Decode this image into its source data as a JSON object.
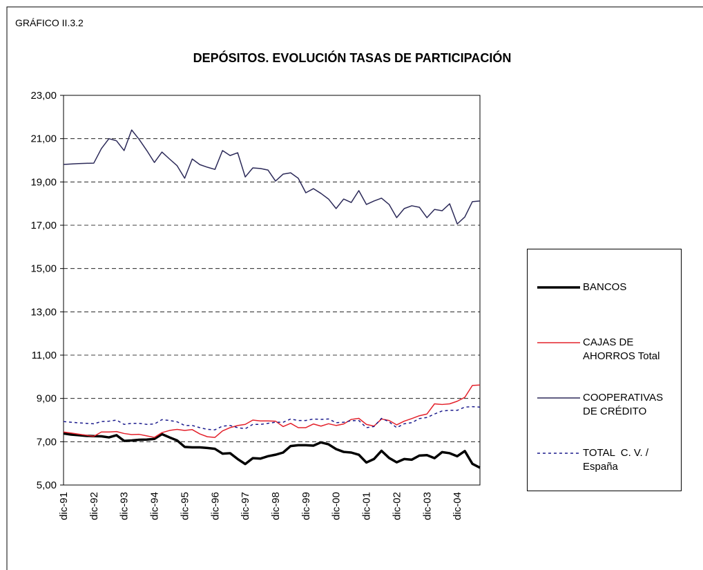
{
  "chart_data": {
    "type": "line",
    "header": "GRÁFICO II.3.2",
    "title": "DEPÓSITOS. EVOLUCIÓN TASAS DE PARTICIPACIÓN",
    "categories": [
      "dic-91",
      null,
      null,
      null,
      "dic-92",
      null,
      null,
      null,
      "dic-93",
      null,
      null,
      null,
      "dic-94",
      null,
      null,
      null,
      "dic-95",
      null,
      null,
      null,
      "dic-96",
      null,
      null,
      null,
      "dic-97",
      null,
      null,
      null,
      "dic-98",
      null,
      null,
      null,
      "dic-99",
      null,
      null,
      null,
      "dic-00",
      null,
      null,
      null,
      "dic-01",
      null,
      null,
      null,
      "dic-02",
      null,
      null,
      null,
      "dic-03",
      null,
      null,
      null,
      "dic-04",
      null,
      null,
      null
    ],
    "ylim": [
      5,
      23
    ],
    "yticks": [
      {
        "value": 5,
        "label": "5,00"
      },
      {
        "value": 7,
        "label": "7,00"
      },
      {
        "value": 9,
        "label": "9,00"
      },
      {
        "value": 11,
        "label": "11,00"
      },
      {
        "value": 13,
        "label": "13,00"
      },
      {
        "value": 15,
        "label": "15,00"
      },
      {
        "value": 17,
        "label": "17,00"
      },
      {
        "value": 19,
        "label": "19,00"
      },
      {
        "value": 21,
        "label": "21,00"
      },
      {
        "value": 23,
        "label": "23,00"
      }
    ],
    "grid": true,
    "legend": "right",
    "series": [
      {
        "name": "BANCOS",
        "color": "#000000",
        "width": 3.5,
        "style": "solid",
        "values": [
          7.38,
          7.33,
          7.3,
          7.27,
          7.26,
          7.25,
          7.2,
          7.3,
          7.04,
          7.06,
          7.09,
          7.1,
          7.13,
          7.35,
          7.2,
          7.06,
          6.76,
          6.74,
          6.74,
          6.71,
          6.67,
          6.45,
          6.47,
          6.2,
          5.97,
          6.24,
          6.22,
          6.33,
          6.4,
          6.5,
          6.8,
          6.84,
          6.84,
          6.82,
          6.97,
          6.88,
          6.66,
          6.53,
          6.5,
          6.4,
          6.04,
          6.2,
          6.58,
          6.25,
          6.05,
          6.2,
          6.17,
          6.36,
          6.38,
          6.24,
          6.52,
          6.47,
          6.33,
          6.57,
          5.98,
          5.8
        ]
      },
      {
        "name": "CAJAS DE AHORROS Total",
        "color": "#e3202a",
        "width": 1.5,
        "style": "solid",
        "values": [
          7.45,
          7.4,
          7.35,
          7.3,
          7.25,
          7.45,
          7.45,
          7.47,
          7.38,
          7.33,
          7.34,
          7.27,
          7.2,
          7.42,
          7.52,
          7.57,
          7.52,
          7.56,
          7.36,
          7.23,
          7.2,
          7.5,
          7.65,
          7.75,
          7.8,
          8.0,
          7.96,
          7.96,
          7.95,
          7.7,
          7.85,
          7.65,
          7.65,
          7.82,
          7.72,
          7.83,
          7.75,
          7.82,
          8.03,
          8.08,
          7.8,
          7.72,
          8.05,
          7.98,
          7.78,
          7.95,
          8.07,
          8.2,
          8.28,
          8.75,
          8.72,
          8.75,
          8.87,
          9.05,
          9.6,
          9.62
        ]
      },
      {
        "name": "COOPERATIVAS DE CRÉDITO",
        "color": "#2b2958",
        "width": 1.5,
        "style": "solid",
        "values": [
          19.81,
          19.83,
          19.85,
          19.86,
          19.87,
          20.54,
          21.0,
          20.9,
          20.45,
          21.4,
          20.96,
          20.45,
          19.9,
          20.38,
          20.06,
          19.75,
          19.17,
          20.06,
          19.8,
          19.68,
          19.58,
          20.45,
          20.22,
          20.35,
          19.23,
          19.65,
          19.62,
          19.55,
          19.04,
          19.36,
          19.42,
          19.17,
          18.5,
          18.69,
          18.47,
          18.21,
          17.77,
          18.21,
          18.05,
          18.6,
          17.96,
          18.12,
          18.25,
          17.96,
          17.35,
          17.77,
          17.9,
          17.83,
          17.35,
          17.73,
          17.67,
          17.99,
          17.06,
          17.38,
          18.09,
          18.12
        ]
      },
      {
        "name": "TOTAL  C. V. / España",
        "color": "#1a1a8c",
        "width": 1.5,
        "style": "dashed",
        "values": [
          7.93,
          7.9,
          7.87,
          7.85,
          7.83,
          7.93,
          7.95,
          8.0,
          7.8,
          7.85,
          7.85,
          7.8,
          7.82,
          8.02,
          7.98,
          7.92,
          7.75,
          7.75,
          7.65,
          7.57,
          7.55,
          7.72,
          7.75,
          7.65,
          7.6,
          7.8,
          7.8,
          7.85,
          7.9,
          7.9,
          8.05,
          7.98,
          7.98,
          8.05,
          8.03,
          8.05,
          7.88,
          7.9,
          7.97,
          7.98,
          7.65,
          7.7,
          8.08,
          7.92,
          7.65,
          7.83,
          7.88,
          8.07,
          8.12,
          8.28,
          8.42,
          8.45,
          8.45,
          8.6,
          8.62,
          8.6
        ]
      }
    ]
  }
}
